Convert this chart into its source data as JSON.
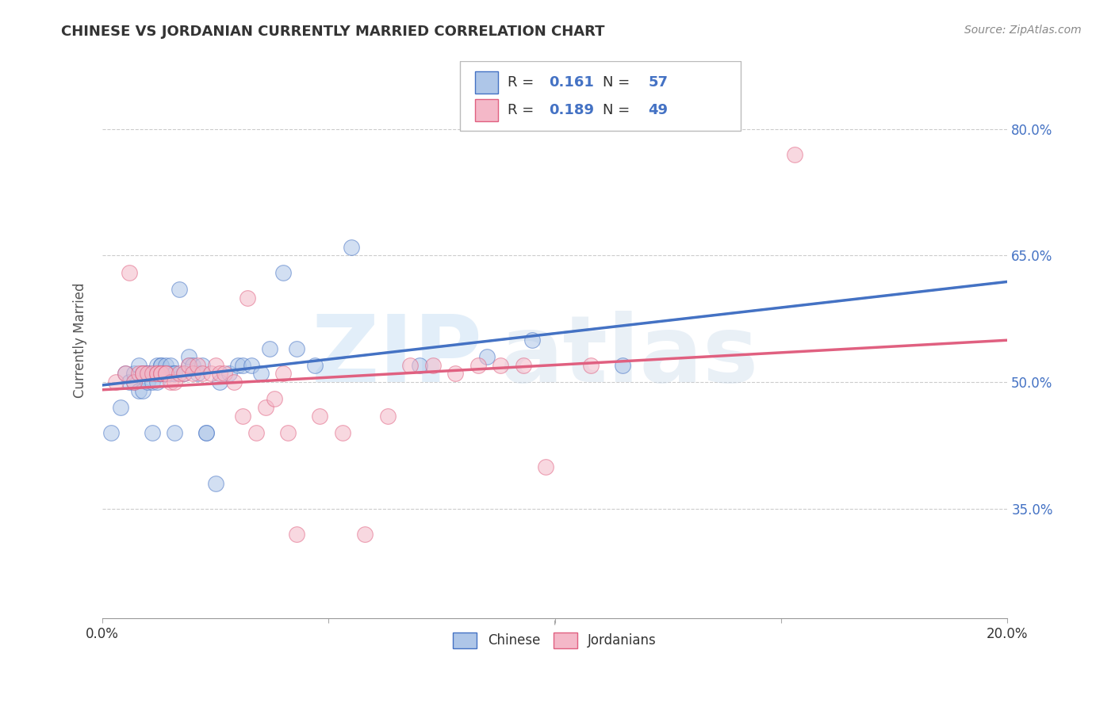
{
  "title": "CHINESE VS JORDANIAN CURRENTLY MARRIED CORRELATION CHART",
  "source": "Source: ZipAtlas.com",
  "ylabel": "Currently Married",
  "ytick_labels": [
    "35.0%",
    "50.0%",
    "65.0%",
    "80.0%"
  ],
  "ytick_values": [
    0.35,
    0.5,
    0.65,
    0.8
  ],
  "xlim": [
    0.0,
    0.2
  ],
  "ylim": [
    0.22,
    0.88
  ],
  "chinese_color": "#aec6e8",
  "jordanian_color": "#f4b8c8",
  "trend_chinese_color": "#4472c4",
  "trend_jordanian_color": "#e06080",
  "legend_r_chinese": "0.161",
  "legend_n_chinese": "57",
  "legend_r_jordanian": "0.189",
  "legend_n_jordanian": "49",
  "chinese_x": [
    0.002,
    0.004,
    0.005,
    0.006,
    0.007,
    0.007,
    0.008,
    0.008,
    0.009,
    0.009,
    0.01,
    0.01,
    0.01,
    0.011,
    0.011,
    0.011,
    0.012,
    0.012,
    0.012,
    0.013,
    0.013,
    0.013,
    0.013,
    0.014,
    0.014,
    0.014,
    0.015,
    0.015,
    0.015,
    0.016,
    0.016,
    0.016,
    0.017,
    0.018,
    0.019,
    0.019,
    0.02,
    0.021,
    0.022,
    0.023,
    0.023,
    0.025,
    0.026,
    0.028,
    0.03,
    0.031,
    0.033,
    0.035,
    0.037,
    0.04,
    0.043,
    0.047,
    0.055,
    0.07,
    0.085,
    0.095,
    0.115
  ],
  "chinese_y": [
    0.44,
    0.47,
    0.51,
    0.5,
    0.5,
    0.51,
    0.49,
    0.52,
    0.51,
    0.49,
    0.51,
    0.51,
    0.5,
    0.51,
    0.5,
    0.44,
    0.51,
    0.52,
    0.5,
    0.51,
    0.52,
    0.52,
    0.51,
    0.51,
    0.52,
    0.51,
    0.51,
    0.51,
    0.52,
    0.51,
    0.44,
    0.51,
    0.61,
    0.51,
    0.52,
    0.53,
    0.52,
    0.51,
    0.52,
    0.44,
    0.44,
    0.38,
    0.5,
    0.51,
    0.52,
    0.52,
    0.52,
    0.51,
    0.54,
    0.63,
    0.54,
    0.52,
    0.66,
    0.52,
    0.53,
    0.55,
    0.52
  ],
  "jordanian_x": [
    0.003,
    0.005,
    0.006,
    0.007,
    0.008,
    0.009,
    0.009,
    0.01,
    0.011,
    0.012,
    0.012,
    0.013,
    0.013,
    0.014,
    0.014,
    0.015,
    0.016,
    0.017,
    0.018,
    0.019,
    0.02,
    0.021,
    0.022,
    0.024,
    0.025,
    0.026,
    0.027,
    0.029,
    0.031,
    0.032,
    0.034,
    0.036,
    0.038,
    0.04,
    0.041,
    0.043,
    0.048,
    0.053,
    0.058,
    0.063,
    0.068,
    0.073,
    0.078,
    0.083,
    0.088,
    0.093,
    0.098,
    0.108,
    0.153
  ],
  "jordanian_y": [
    0.5,
    0.51,
    0.63,
    0.5,
    0.51,
    0.51,
    0.51,
    0.51,
    0.51,
    0.51,
    0.51,
    0.51,
    0.51,
    0.51,
    0.51,
    0.5,
    0.5,
    0.51,
    0.51,
    0.52,
    0.51,
    0.52,
    0.51,
    0.51,
    0.52,
    0.51,
    0.51,
    0.5,
    0.46,
    0.6,
    0.44,
    0.47,
    0.48,
    0.51,
    0.44,
    0.32,
    0.46,
    0.44,
    0.32,
    0.46,
    0.52,
    0.52,
    0.51,
    0.52,
    0.52,
    0.52,
    0.4,
    0.52,
    0.77
  ]
}
